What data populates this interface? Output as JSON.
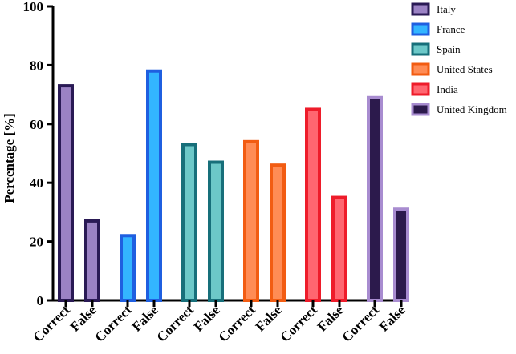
{
  "chart_data": {
    "type": "bar",
    "ylabel": "Percentage [%]",
    "xlabel": "",
    "ylim": [
      0,
      100
    ],
    "yticks": [
      0,
      20,
      40,
      60,
      80,
      100
    ],
    "legend_position": "top-right",
    "groups": [
      {
        "name": "Italy",
        "fill": "#9b82c4",
        "stroke": "#2a1a55",
        "bars": [
          {
            "label": "Correct",
            "value": 73
          },
          {
            "label": "False",
            "value": 27
          }
        ]
      },
      {
        "name": "France",
        "fill": "#33b5ff",
        "stroke": "#1f5fe0",
        "bars": [
          {
            "label": "Correct",
            "value": 22
          },
          {
            "label": "False",
            "value": 78
          }
        ]
      },
      {
        "name": "Spain",
        "fill": "#6cc8c8",
        "stroke": "#176f7a",
        "bars": [
          {
            "label": "Correct",
            "value": 53
          },
          {
            "label": "False",
            "value": 47
          }
        ]
      },
      {
        "name": "United States",
        "fill": "#ff8c55",
        "stroke": "#f25c12",
        "bars": [
          {
            "label": "Correct",
            "value": 54
          },
          {
            "label": "False",
            "value": 46
          }
        ]
      },
      {
        "name": "India",
        "fill": "#ff6670",
        "stroke": "#ee1c2a",
        "bars": [
          {
            "label": "Correct",
            "value": 65
          },
          {
            "label": "False",
            "value": 35
          }
        ]
      },
      {
        "name": "United Kingdom",
        "fill": "#2c1a4c",
        "stroke": "#a88cd0",
        "bars": [
          {
            "label": "Correct",
            "value": 69
          },
          {
            "label": "False",
            "value": 31
          }
        ]
      }
    ]
  }
}
